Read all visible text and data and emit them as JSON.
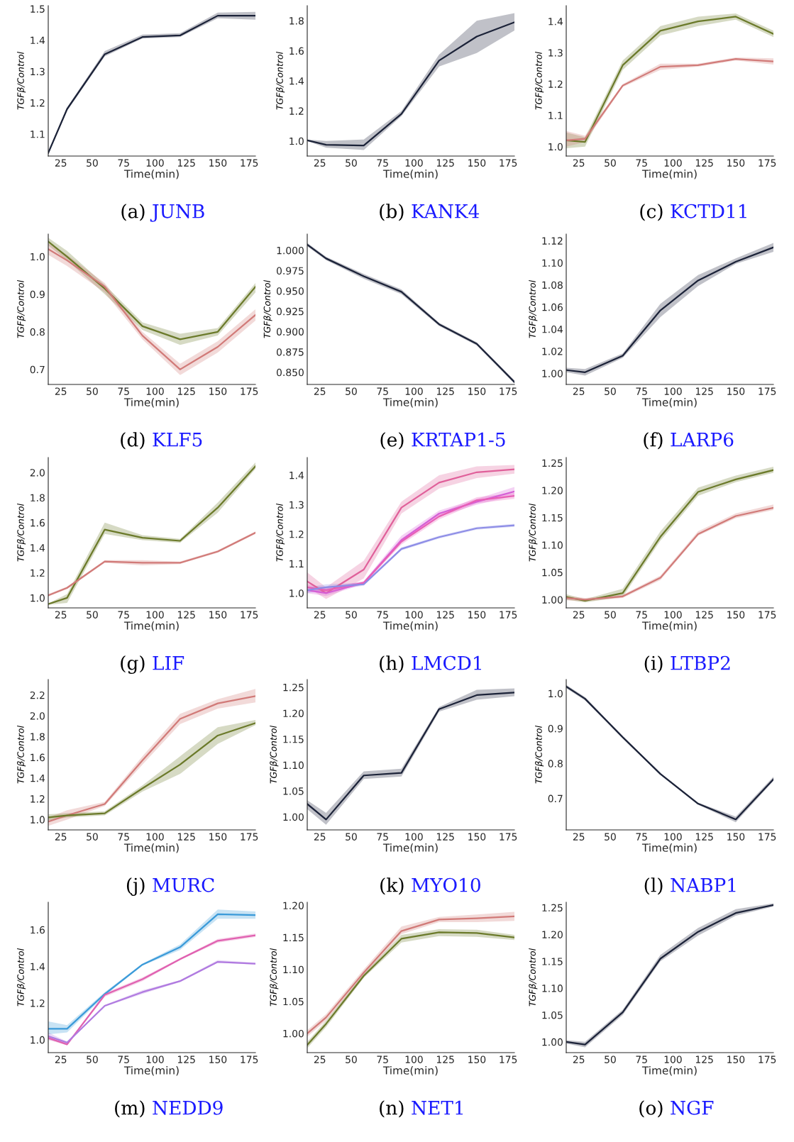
{
  "chart_data": [
    {
      "type": "line",
      "title": "(a) JUNB",
      "xlabel": "Time(min)",
      "ylabel": "TGFβ/Control",
      "x": [
        15,
        30,
        60,
        90,
        120,
        150,
        180
      ],
      "xlim": [
        15,
        180
      ],
      "xticks": [
        25,
        50,
        75,
        100,
        125,
        150,
        175
      ],
      "ylim": [
        1.03,
        1.51
      ],
      "yticks": [
        1.1,
        1.2,
        1.3,
        1.4,
        1.5
      ],
      "grid": false,
      "series": [
        {
          "color": "#1b2238",
          "values": [
            1.04,
            1.18,
            1.355,
            1.41,
            1.415,
            1.478,
            1.478
          ],
          "lower": [
            1.038,
            1.175,
            1.348,
            1.405,
            1.41,
            1.47,
            1.465
          ],
          "upper": [
            1.042,
            1.185,
            1.365,
            1.418,
            1.422,
            1.488,
            1.49
          ]
        }
      ]
    },
    {
      "type": "line",
      "title": "(b) KANK4",
      "xlabel": "Time(min)",
      "ylabel": "TGFβ/Control",
      "x": [
        15,
        30,
        60,
        90,
        120,
        150,
        180
      ],
      "xlim": [
        15,
        180
      ],
      "xticks": [
        25,
        50,
        75,
        100,
        125,
        150,
        175
      ],
      "ylim": [
        0.9,
        1.9
      ],
      "yticks": [
        {
          "value": 1.0,
          "label": "1.0"
        },
        1.2,
        1.4,
        1.6,
        1.8
      ],
      "grid": false,
      "series": [
        {
          "color": "#1b2238",
          "values": [
            1.005,
            0.975,
            0.97,
            1.18,
            1.535,
            1.695,
            1.79
          ],
          "lower": [
            1.0,
            0.955,
            0.94,
            1.165,
            1.495,
            1.585,
            1.735
          ],
          "upper": [
            1.01,
            1.0,
            1.01,
            1.2,
            1.575,
            1.8,
            1.85
          ]
        }
      ]
    },
    {
      "type": "line",
      "title": "(c) KCTD11",
      "xlabel": "Time(min)",
      "ylabel": "TGFβ/Control",
      "x": [
        15,
        30,
        60,
        90,
        120,
        150,
        180
      ],
      "xlim": [
        15,
        180
      ],
      "xticks": [
        25,
        50,
        75,
        100,
        125,
        150,
        175
      ],
      "ylim": [
        0.97,
        1.45
      ],
      "yticks": [
        {
          "value": 1.0,
          "label": "1.0"
        },
        1.1,
        1.2,
        1.3,
        1.4
      ],
      "grid": false,
      "series": [
        {
          "color": "#6b7a2a",
          "values": [
            1.02,
            1.015,
            1.26,
            1.37,
            1.4,
            1.415,
            1.36
          ],
          "lower": [
            0.995,
            1.0,
            1.245,
            1.355,
            1.385,
            1.405,
            1.35
          ],
          "upper": [
            1.045,
            1.03,
            1.275,
            1.385,
            1.415,
            1.425,
            1.37
          ]
        },
        {
          "color": "#d17a78",
          "values": [
            1.02,
            1.025,
            1.195,
            1.255,
            1.26,
            1.28,
            1.272
          ],
          "lower": [
            1.0,
            1.015,
            1.19,
            1.245,
            1.255,
            1.275,
            1.262
          ],
          "upper": [
            1.05,
            1.035,
            1.2,
            1.265,
            1.265,
            1.285,
            1.282
          ]
        }
      ]
    },
    {
      "type": "line",
      "title": "(d) KLF5",
      "xlabel": "Time(min)",
      "ylabel": "TGFβ/Control",
      "x": [
        15,
        30,
        60,
        90,
        120,
        150,
        180
      ],
      "xlim": [
        15,
        180
      ],
      "xticks": [
        25,
        50,
        75,
        100,
        125,
        150,
        175
      ],
      "ylim": [
        0.66,
        1.06
      ],
      "yticks": [
        0.7,
        0.8,
        0.9,
        {
          "value": 1.0,
          "label": "1.0"
        }
      ],
      "grid": false,
      "series": [
        {
          "color": "#6b7a2a",
          "values": [
            1.04,
            1.0,
            0.915,
            0.815,
            0.78,
            0.8,
            0.92
          ],
          "lower": [
            1.03,
            0.99,
            0.9,
            0.805,
            0.765,
            0.79,
            0.905
          ],
          "upper": [
            1.05,
            1.015,
            0.925,
            0.825,
            0.795,
            0.81,
            0.93
          ]
        },
        {
          "color": "#d17a78",
          "values": [
            1.02,
            0.99,
            0.92,
            0.79,
            0.7,
            0.76,
            0.845
          ],
          "lower": [
            1.005,
            0.975,
            0.905,
            0.78,
            0.685,
            0.745,
            0.83
          ],
          "upper": [
            1.035,
            1.005,
            0.93,
            0.8,
            0.715,
            0.775,
            0.86
          ]
        }
      ]
    },
    {
      "type": "line",
      "title": "(e) KRTAP1-5",
      "xlabel": "Time(min)",
      "ylabel": "TGFβ/Control",
      "x": [
        15,
        30,
        60,
        90,
        120,
        150,
        180
      ],
      "xlim": [
        15,
        180
      ],
      "xticks": [
        25,
        50,
        75,
        100,
        125,
        150,
        175
      ],
      "ylim": [
        0.835,
        1.02
      ],
      "yticks": [
        {
          "value": 0.85,
          "label": "0.850"
        },
        {
          "value": 0.875,
          "label": "0.875"
        },
        {
          "value": 0.9,
          "label": "0.900"
        },
        0.925,
        {
          "value": 0.95,
          "label": "0.950"
        },
        0.975,
        {
          "value": 1.0,
          "label": "1.000"
        }
      ],
      "grid": false,
      "series": [
        {
          "color": "#1b2238",
          "values": [
            1.007,
            0.99,
            0.968,
            0.949,
            0.909,
            0.885,
            0.838
          ],
          "lower": [
            1.005,
            0.988,
            0.965,
            0.946,
            0.907,
            0.883,
            0.836
          ],
          "upper": [
            1.009,
            0.992,
            0.971,
            0.952,
            0.911,
            0.887,
            0.84
          ]
        }
      ]
    },
    {
      "type": "line",
      "title": "(f) LARP6",
      "xlabel": "Time(min)",
      "ylabel": "TGFβ/Control",
      "x": [
        15,
        30,
        60,
        90,
        120,
        150,
        180
      ],
      "xlim": [
        15,
        180
      ],
      "xticks": [
        25,
        50,
        75,
        100,
        125,
        150,
        175
      ],
      "ylim": [
        0.99,
        1.126
      ],
      "yticks": [
        {
          "value": 1.0,
          "label": "1.00"
        },
        1.02,
        1.04,
        1.06,
        1.08,
        {
          "value": 1.1,
          "label": "1.10"
        },
        1.12
      ],
      "grid": false,
      "series": [
        {
          "color": "#1b2238",
          "values": [
            1.003,
            1.001,
            1.016,
            1.057,
            1.084,
            1.101,
            1.114
          ],
          "lower": [
            1.001,
            0.998,
            1.014,
            1.051,
            1.079,
            1.099,
            1.11
          ],
          "upper": [
            1.005,
            1.004,
            1.018,
            1.063,
            1.089,
            1.104,
            1.118
          ]
        }
      ]
    },
    {
      "type": "line",
      "title": "(g) LIF",
      "xlabel": "Time(min)",
      "ylabel": "TGFβ/Control",
      "x": [
        15,
        30,
        60,
        90,
        120,
        150,
        180
      ],
      "xlim": [
        15,
        180
      ],
      "xticks": [
        25,
        50,
        75,
        100,
        125,
        150,
        175
      ],
      "ylim": [
        0.92,
        2.12
      ],
      "yticks": [
        {
          "value": 1.0,
          "label": "1.0"
        },
        1.2,
        1.4,
        1.6,
        1.8,
        {
          "value": 2.0,
          "label": "2.0"
        }
      ],
      "grid": false,
      "series": [
        {
          "color": "#6b7a2a",
          "values": [
            0.95,
            1.0,
            1.545,
            1.48,
            1.455,
            1.72,
            2.05
          ],
          "lower": [
            0.945,
            0.96,
            1.51,
            1.46,
            1.44,
            1.68,
            2.03
          ],
          "upper": [
            0.955,
            1.03,
            1.6,
            1.5,
            1.47,
            1.76,
            2.08
          ]
        },
        {
          "color": "#d17a78",
          "values": [
            1.02,
            1.08,
            1.29,
            1.28,
            1.28,
            1.37,
            1.52
          ],
          "lower": [
            1.01,
            1.07,
            1.28,
            1.26,
            1.27,
            1.36,
            1.51
          ],
          "upper": [
            1.03,
            1.09,
            1.3,
            1.3,
            1.29,
            1.38,
            1.53
          ]
        }
      ]
    },
    {
      "type": "line",
      "title": "(h) LMCD1",
      "xlabel": "Time(min)",
      "ylabel": "TGFβ/Control",
      "x": [
        15,
        30,
        60,
        90,
        120,
        150,
        180
      ],
      "xlim": [
        15,
        180
      ],
      "xticks": [
        25,
        50,
        75,
        100,
        125,
        150,
        175
      ],
      "ylim": [
        0.95,
        1.46
      ],
      "yticks": [
        {
          "value": 1.0,
          "label": "1.0"
        },
        1.1,
        1.2,
        1.3,
        1.4
      ],
      "grid": false,
      "series": [
        {
          "color": "#e0609a",
          "values": [
            1.04,
            1.0,
            1.08,
            1.29,
            1.375,
            1.41,
            1.42
          ],
          "lower": [
            1.02,
            0.98,
            1.05,
            1.27,
            1.355,
            1.39,
            1.405
          ],
          "upper": [
            1.07,
            1.02,
            1.11,
            1.31,
            1.4,
            1.43,
            1.435
          ]
        },
        {
          "color": "#d65fd6",
          "values": [
            1.01,
            1.0,
            1.035,
            1.18,
            1.27,
            1.31,
            1.345
          ],
          "lower": [
            1.0,
            0.99,
            1.03,
            1.17,
            1.26,
            1.3,
            1.33
          ],
          "upper": [
            1.02,
            1.015,
            1.04,
            1.195,
            1.28,
            1.32,
            1.36
          ]
        },
        {
          "color": "#e85fb6",
          "values": [
            1.02,
            1.01,
            1.035,
            1.175,
            1.26,
            1.315,
            1.33
          ],
          "lower": [
            1.01,
            1.0,
            1.03,
            1.165,
            1.25,
            1.305,
            1.32
          ],
          "upper": [
            1.03,
            1.02,
            1.04,
            1.185,
            1.27,
            1.325,
            1.34
          ]
        },
        {
          "color": "#8c8ce6",
          "values": [
            1.01,
            1.02,
            1.03,
            1.15,
            1.19,
            1.22,
            1.23
          ],
          "lower": [
            1.0,
            1.01,
            1.025,
            1.145,
            1.185,
            1.215,
            1.225
          ],
          "upper": [
            1.02,
            1.03,
            1.035,
            1.155,
            1.195,
            1.225,
            1.235
          ]
        }
      ]
    },
    {
      "type": "line",
      "title": "(i) LTBP2",
      "xlabel": "Time(min)",
      "ylabel": "TGFβ/Control",
      "x": [
        15,
        30,
        60,
        90,
        120,
        150,
        180
      ],
      "xlim": [
        15,
        180
      ],
      "xticks": [
        25,
        50,
        75,
        100,
        125,
        150,
        175
      ],
      "ylim": [
        0.985,
        1.26
      ],
      "yticks": [
        {
          "value": 1.0,
          "label": "1.00"
        },
        1.05,
        {
          "value": 1.1,
          "label": "1.10"
        },
        1.15,
        {
          "value": 1.2,
          "label": "1.20"
        },
        1.25
      ],
      "grid": false,
      "series": [
        {
          "color": "#6b7a2a",
          "values": [
            1.005,
            0.998,
            1.012,
            1.115,
            1.197,
            1.22,
            1.237
          ],
          "lower": [
            1.0,
            0.995,
            1.005,
            1.108,
            1.19,
            1.215,
            1.232
          ],
          "upper": [
            1.01,
            1.001,
            1.02,
            1.125,
            1.205,
            1.227,
            1.243
          ]
        },
        {
          "color": "#d17a78",
          "values": [
            1.003,
            1.0,
            1.006,
            1.04,
            1.12,
            1.153,
            1.168
          ],
          "lower": [
            0.999,
            0.997,
            1.003,
            1.036,
            1.117,
            1.149,
            1.164
          ],
          "upper": [
            1.007,
            1.003,
            1.009,
            1.044,
            1.125,
            1.158,
            1.174
          ]
        }
      ]
    },
    {
      "type": "line",
      "title": "(j) MURC",
      "xlabel": "Time(min)",
      "ylabel": "TGFβ/Control",
      "x": [
        15,
        30,
        60,
        90,
        120,
        150,
        180
      ],
      "xlim": [
        15,
        180
      ],
      "xticks": [
        25,
        50,
        75,
        100,
        125,
        150,
        175
      ],
      "ylim": [
        0.9,
        2.35
      ],
      "yticks": [
        {
          "value": 1.0,
          "label": "1.0"
        },
        1.2,
        1.4,
        1.6,
        1.8,
        {
          "value": 2.0,
          "label": "2.0"
        },
        2.2
      ],
      "grid": false,
      "series": [
        {
          "color": "#d17a78",
          "values": [
            0.98,
            1.04,
            1.15,
            1.57,
            1.97,
            2.12,
            2.19
          ],
          "lower": [
            0.94,
            1.0,
            1.13,
            1.53,
            1.92,
            2.07,
            2.13
          ],
          "upper": [
            1.02,
            1.09,
            1.17,
            1.61,
            2.02,
            2.16,
            2.26
          ]
        },
        {
          "color": "#6b7a2a",
          "values": [
            1.02,
            1.04,
            1.06,
            1.3,
            1.53,
            1.81,
            1.93
          ],
          "lower": [
            0.99,
            1.02,
            1.04,
            1.27,
            1.44,
            1.73,
            1.91
          ],
          "upper": [
            1.05,
            1.06,
            1.08,
            1.33,
            1.61,
            1.89,
            1.96
          ]
        }
      ]
    },
    {
      "type": "line",
      "title": "(k) MYO10",
      "xlabel": "Time(min)",
      "ylabel": "TGFβ/Control",
      "x": [
        15,
        30,
        60,
        90,
        120,
        150,
        180
      ],
      "xlim": [
        15,
        180
      ],
      "xticks": [
        25,
        50,
        75,
        100,
        125,
        150,
        175
      ],
      "ylim": [
        0.975,
        1.265
      ],
      "yticks": [
        {
          "value": 1.0,
          "label": "1.00"
        },
        1.05,
        {
          "value": 1.1,
          "label": "1.10"
        },
        1.15,
        {
          "value": 1.2,
          "label": "1.20"
        },
        1.25
      ],
      "grid": false,
      "series": [
        {
          "color": "#1b2238",
          "values": [
            1.025,
            0.995,
            1.08,
            1.085,
            1.208,
            1.235,
            1.24
          ],
          "lower": [
            1.015,
            0.985,
            1.073,
            1.078,
            1.203,
            1.226,
            1.233
          ],
          "upper": [
            1.032,
            1.008,
            1.088,
            1.093,
            1.212,
            1.245,
            1.248
          ]
        }
      ]
    },
    {
      "type": "line",
      "title": "(l) NABP1",
      "xlabel": "Time(min)",
      "ylabel": "TGFβ/Control",
      "x": [
        15,
        30,
        60,
        90,
        120,
        150,
        180
      ],
      "xlim": [
        15,
        180
      ],
      "xticks": [
        25,
        50,
        75,
        100,
        125,
        150,
        175
      ],
      "ylim": [
        0.61,
        1.04
      ],
      "yticks": [
        0.7,
        0.8,
        0.9,
        {
          "value": 1.0,
          "label": "1.0"
        }
      ],
      "grid": false,
      "series": [
        {
          "color": "#1b2238",
          "values": [
            1.02,
            0.985,
            0.875,
            0.77,
            0.685,
            0.64,
            0.755
          ],
          "lower": [
            1.015,
            0.98,
            0.872,
            0.767,
            0.682,
            0.632,
            0.75
          ],
          "upper": [
            1.025,
            0.99,
            0.878,
            0.773,
            0.688,
            0.648,
            0.762
          ]
        }
      ]
    },
    {
      "type": "line",
      "title": "(m) NEDD9",
      "xlabel": "Time(min)",
      "ylabel": "TGFβ/Control",
      "x": [
        15,
        30,
        60,
        90,
        120,
        150,
        180
      ],
      "xlim": [
        15,
        180
      ],
      "xticks": [
        25,
        50,
        75,
        100,
        125,
        150,
        175
      ],
      "ylim": [
        0.93,
        1.75
      ],
      "yticks": [
        {
          "value": 1.0,
          "label": "1.0"
        },
        1.2,
        1.4,
        1.6
      ],
      "grid": false,
      "series": [
        {
          "color": "#3a9ad9",
          "values": [
            1.06,
            1.06,
            1.25,
            1.41,
            1.505,
            1.685,
            1.68
          ],
          "lower": [
            1.03,
            1.04,
            1.24,
            1.405,
            1.49,
            1.66,
            1.66
          ],
          "upper": [
            1.1,
            1.08,
            1.26,
            1.415,
            1.52,
            1.71,
            1.7
          ]
        },
        {
          "color": "#e060b0",
          "values": [
            1.01,
            0.975,
            1.245,
            1.33,
            1.44,
            1.54,
            1.57
          ],
          "lower": [
            1.0,
            0.97,
            1.235,
            1.32,
            1.435,
            1.53,
            1.56
          ],
          "upper": [
            1.02,
            0.98,
            1.255,
            1.34,
            1.445,
            1.55,
            1.58
          ]
        },
        {
          "color": "#b07ae0",
          "values": [
            1.02,
            0.985,
            1.185,
            1.26,
            1.32,
            1.425,
            1.415
          ],
          "lower": [
            1.0,
            0.98,
            1.18,
            1.25,
            1.315,
            1.42,
            1.41
          ],
          "upper": [
            1.04,
            0.99,
            1.19,
            1.27,
            1.325,
            1.435,
            1.42
          ]
        }
      ]
    },
    {
      "type": "line",
      "title": "(n) NET1",
      "xlabel": "Time(min)",
      "ylabel": "TGFβ/Control",
      "x": [
        15,
        30,
        60,
        90,
        120,
        150,
        180
      ],
      "xlim": [
        15,
        180
      ],
      "xticks": [
        25,
        50,
        75,
        100,
        125,
        150,
        175
      ],
      "ylim": [
        0.97,
        1.205
      ],
      "yticks": [
        {
          "value": 1.0,
          "label": "1.00"
        },
        1.05,
        {
          "value": 1.1,
          "label": "1.10"
        },
        1.15,
        {
          "value": 1.2,
          "label": "1.20"
        }
      ],
      "grid": false,
      "series": [
        {
          "color": "#d17a78",
          "values": [
            1.0,
            1.025,
            1.095,
            1.16,
            1.178,
            1.18,
            1.183
          ],
          "lower": [
            0.995,
            1.02,
            1.09,
            1.155,
            1.174,
            1.174,
            1.176
          ],
          "upper": [
            1.005,
            1.03,
            1.1,
            1.167,
            1.182,
            1.186,
            1.19
          ]
        },
        {
          "color": "#6b7a2a",
          "values": [
            0.982,
            1.015,
            1.09,
            1.148,
            1.158,
            1.157,
            1.15
          ],
          "lower": [
            0.977,
            1.01,
            1.087,
            1.142,
            1.152,
            1.151,
            1.146
          ],
          "upper": [
            0.987,
            1.02,
            1.093,
            1.154,
            1.163,
            1.162,
            1.154
          ]
        }
      ]
    },
    {
      "type": "line",
      "title": "(o) NGF",
      "xlabel": "Time(min)",
      "ylabel": "TGFβ/Control",
      "x": [
        15,
        30,
        60,
        90,
        120,
        150,
        180
      ],
      "xlim": [
        15,
        180
      ],
      "xticks": [
        25,
        50,
        75,
        100,
        125,
        150,
        175
      ],
      "ylim": [
        0.98,
        1.26
      ],
      "yticks": [
        {
          "value": 1.0,
          "label": "1.00"
        },
        1.05,
        {
          "value": 1.1,
          "label": "1.10"
        },
        1.15,
        {
          "value": 1.2,
          "label": "1.20"
        },
        1.25
      ],
      "grid": false,
      "series": [
        {
          "color": "#1b2238",
          "values": [
            1.0,
            0.995,
            1.055,
            1.155,
            1.205,
            1.24,
            1.255
          ],
          "lower": [
            0.997,
            0.99,
            1.05,
            1.15,
            1.198,
            1.235,
            1.252
          ],
          "upper": [
            1.003,
            1.0,
            1.06,
            1.162,
            1.212,
            1.247,
            1.258
          ]
        }
      ]
    }
  ]
}
